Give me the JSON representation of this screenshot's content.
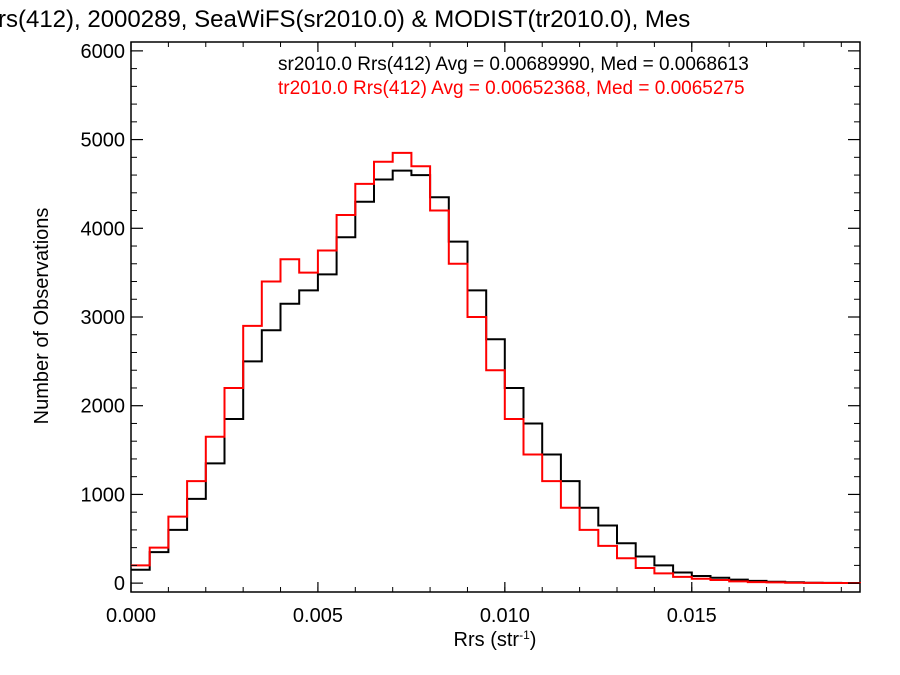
{
  "chart_data": {
    "type": "line",
    "title": "rs(412), 2000289, SeaWiFS(sr2010.0) & MODIST(tr2010.0), Mes",
    "xlabel_main": "Rrs (str",
    "xlabel_sup": "-1",
    "xlabel_tail": ")",
    "ylabel": "Number of Observations",
    "xlim": [
      0.0,
      0.0195
    ],
    "ylim": [
      -100,
      6100
    ],
    "x_ticks": [
      0.0,
      0.005,
      0.01,
      0.015
    ],
    "x_tick_labels": [
      "0.000",
      "0.005",
      "0.010",
      "0.015"
    ],
    "y_ticks": [
      0,
      1000,
      2000,
      3000,
      4000,
      5000,
      6000
    ],
    "y_tick_labels": [
      "0",
      "1000",
      "2000",
      "3000",
      "4000",
      "5000",
      "6000"
    ],
    "step": "histogram",
    "grid": false,
    "legend_placement": "top-right",
    "series": [
      {
        "name": "sr2010.0 Rrs(412) Avg = 0.00689990, Med = 0.0068613",
        "color": "#000000",
        "x": [
          0.0,
          0.0005,
          0.001,
          0.0015,
          0.002,
          0.0025,
          0.003,
          0.0035,
          0.004,
          0.0045,
          0.005,
          0.0055,
          0.006,
          0.0065,
          0.007,
          0.0075,
          0.008,
          0.0085,
          0.009,
          0.0095,
          0.01,
          0.0105,
          0.011,
          0.0115,
          0.012,
          0.0125,
          0.013,
          0.0135,
          0.014,
          0.0145,
          0.015,
          0.0155,
          0.016,
          0.0165,
          0.017,
          0.0175,
          0.018,
          0.0185,
          0.019,
          0.0195
        ],
        "y": [
          150,
          350,
          600,
          950,
          1350,
          1850,
          2500,
          2850,
          3150,
          3300,
          3480,
          3900,
          4300,
          4550,
          4650,
          4600,
          4350,
          3850,
          3300,
          2750,
          2200,
          1800,
          1450,
          1150,
          850,
          650,
          450,
          300,
          200,
          120,
          80,
          60,
          40,
          25,
          15,
          10,
          5,
          3,
          2,
          0
        ]
      },
      {
        "name": "tr2010.0 Rrs(412) Avg = 0.00652368, Med = 0.0065275",
        "color": "#ff0000",
        "x": [
          0.0,
          0.0005,
          0.001,
          0.0015,
          0.002,
          0.0025,
          0.003,
          0.0035,
          0.004,
          0.0045,
          0.005,
          0.0055,
          0.006,
          0.0065,
          0.007,
          0.0075,
          0.008,
          0.0085,
          0.009,
          0.0095,
          0.01,
          0.0105,
          0.011,
          0.0115,
          0.012,
          0.0125,
          0.013,
          0.0135,
          0.014,
          0.0145,
          0.015,
          0.0155,
          0.016,
          0.0165,
          0.017,
          0.0175,
          0.018,
          0.0185,
          0.019,
          0.0195
        ],
        "y": [
          200,
          400,
          750,
          1150,
          1650,
          2200,
          2900,
          3400,
          3650,
          3500,
          3750,
          4150,
          4500,
          4750,
          4850,
          4700,
          4200,
          3600,
          3000,
          2400,
          1850,
          1450,
          1150,
          850,
          600,
          420,
          280,
          170,
          110,
          70,
          50,
          35,
          20,
          12,
          8,
          5,
          3,
          2,
          1,
          0
        ]
      }
    ]
  }
}
